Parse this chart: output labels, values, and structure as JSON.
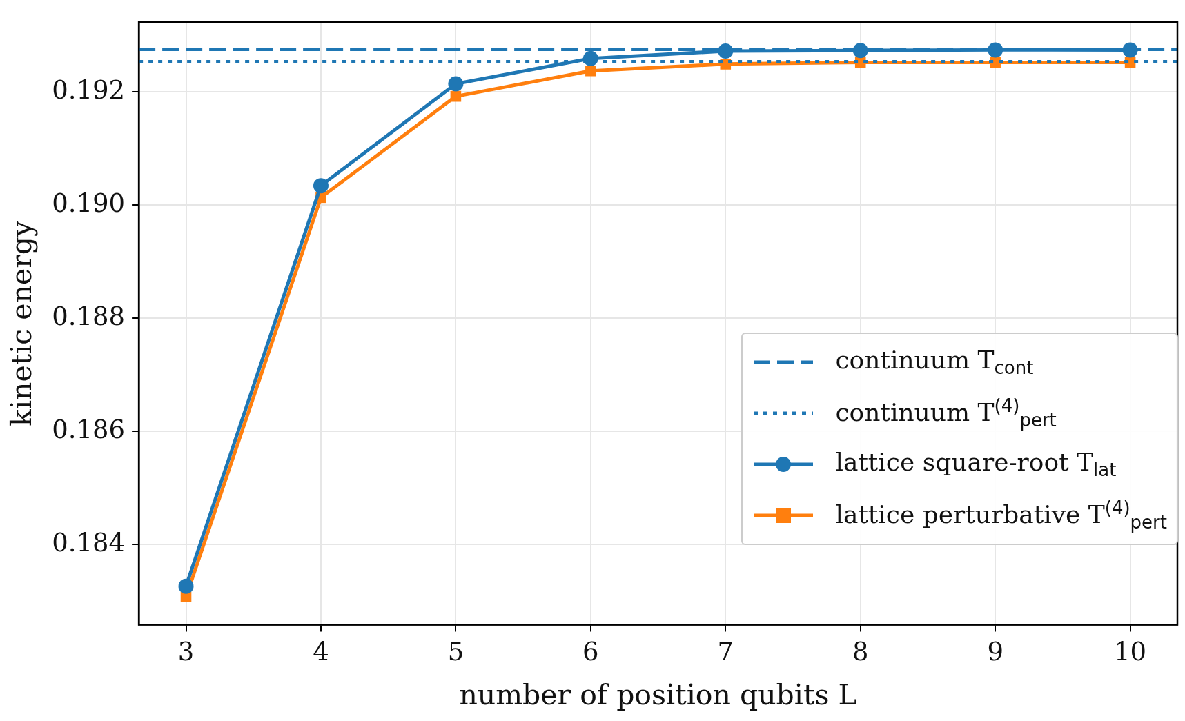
{
  "chart_data": {
    "type": "line",
    "xlabel": "number of position qubits L",
    "ylabel": "kinetic energy",
    "x": [
      3,
      4,
      5,
      6,
      7,
      8,
      9,
      10
    ],
    "series": [
      {
        "name": "lattice square-root T$_{lat}$",
        "color": "#1f77b4",
        "marker": "circle",
        "values": [
          0.18326,
          0.19034,
          0.19214,
          0.19259,
          0.19272,
          0.19273,
          0.19274,
          0.19274
        ]
      },
      {
        "name": "lattice perturbative T$^{(4)}$$_{pert}$",
        "color": "#ff7f0e",
        "marker": "square",
        "values": [
          0.18307,
          0.19013,
          0.19192,
          0.19237,
          0.19249,
          0.19252,
          0.19252,
          0.19252
        ]
      }
    ],
    "ref_lines": [
      {
        "axis": "y",
        "value": 0.19275,
        "label": "continuum T$_{cont}$",
        "color": "#1f77b4",
        "line_style": "dashed"
      },
      {
        "axis": "y",
        "value": 0.19253,
        "label": "continuum T$^{(4)}$$_{pert}$",
        "color": "#1f77b4",
        "line_style": "dotted"
      }
    ],
    "xlim": [
      2.65,
      10.35
    ],
    "xticks": [
      3,
      4,
      5,
      6,
      7,
      8,
      9,
      10
    ],
    "ylim": [
      0.18258,
      0.19323
    ],
    "yticks": [
      0.184,
      0.186,
      0.188,
      {
        "value": 0.19,
        "label": "0.190"
      },
      0.192
    ],
    "grid": true,
    "legend": "bottom right"
  }
}
